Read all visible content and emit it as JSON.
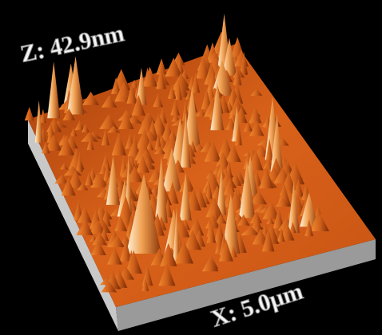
{
  "labels": {
    "z": "Z: 42.9nm",
    "x": "X: 5.0μm"
  }
}
